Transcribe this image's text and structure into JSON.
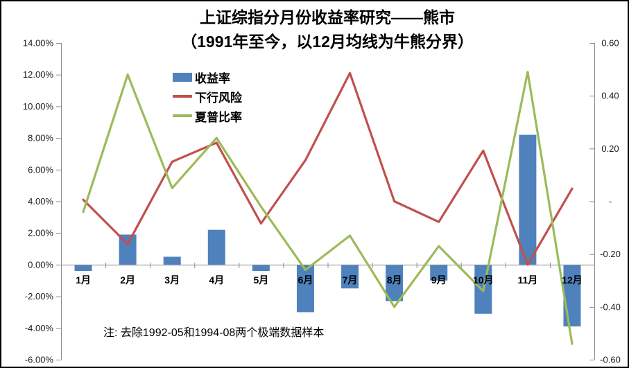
{
  "title": {
    "line1": "上证综指分月份收益率研究——熊市",
    "line2": "（1991年至今，以12月均线为牛熊分界）"
  },
  "note": "注: 去除1992-05和1994-08两个极端数据样本",
  "colors": {
    "bar": "#4f81bd",
    "downside_risk_line": "#c0504d",
    "sharpe_line": "#9bbb59",
    "axis": "#8c8c8c",
    "tick_text": "#1a1a1a",
    "background": "#ffffff",
    "border": "#000000"
  },
  "chart_data": {
    "type": "combo",
    "title": "上证综指分月份收益率研究——熊市（1991年至今，以12月均线为牛熊分界）",
    "grid": false,
    "legend_position": "inside-top-left",
    "categories": [
      "1月",
      "2月",
      "3月",
      "4月",
      "5月",
      "6月",
      "7月",
      "8月",
      "9月",
      "10月",
      "11月",
      "12月"
    ],
    "series": [
      {
        "name": "收益率",
        "slug": "returns-bars",
        "type": "bar",
        "axis": "left",
        "unit": "%",
        "color": "#4f81bd",
        "values": [
          -0.4,
          1.9,
          0.5,
          2.2,
          -0.4,
          -3.0,
          -1.5,
          -2.3,
          -1.0,
          -3.1,
          8.2,
          -3.9
        ]
      },
      {
        "name": "下行风险",
        "slug": "downside-risk-line",
        "type": "line",
        "axis": "left",
        "unit": "%",
        "color": "#c0504d",
        "values": [
          4.1,
          1.3,
          6.5,
          7.7,
          2.6,
          6.6,
          12.1,
          4.0,
          2.7,
          7.2,
          0.0,
          4.8
        ]
      },
      {
        "name": "夏普比率",
        "slug": "sharpe-ratio-line",
        "type": "line",
        "axis": "right",
        "unit": "",
        "color": "#9bbb59",
        "values": [
          -0.04,
          0.48,
          0.05,
          0.24,
          -0.02,
          -0.26,
          -0.13,
          -0.4,
          -0.17,
          -0.34,
          0.49,
          -0.54
        ]
      }
    ],
    "axes": {
      "left": {
        "min": -6,
        "max": 14,
        "step": 2,
        "format": "percent",
        "tick_labels": [
          "14.00%",
          "12.00%",
          "10.00%",
          "8.00%",
          "6.00%",
          "4.00%",
          "2.00%",
          "0.00%",
          "-2.00%",
          "-4.00%",
          "-6.00%"
        ]
      },
      "right": {
        "min": -0.6,
        "max": 0.6,
        "step": 0.2,
        "format": "decimal",
        "tick_labels": [
          "0.60",
          "0.40",
          "0.20",
          "-",
          "-0.20",
          "-0.40",
          "-0.60"
        ]
      }
    }
  }
}
